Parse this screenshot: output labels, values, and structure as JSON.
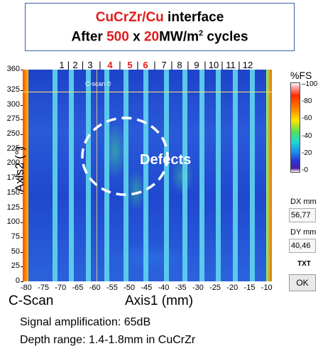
{
  "title": {
    "line1_red": "CuCrZr/Cu",
    "line1_rest": " interface",
    "line2_a": "After ",
    "line2_num1": "500",
    "line2_b": " x ",
    "line2_num2": "20",
    "line2_c": "MW/m",
    "line2_sup": "2",
    "line2_d": " cycles"
  },
  "channels": {
    "labels": [
      "1",
      "2",
      "3",
      "4",
      "5",
      "6",
      "7",
      "8",
      "9",
      "10",
      "11",
      "12"
    ],
    "highlighted": [
      "4",
      "5",
      "6"
    ],
    "separator": "|"
  },
  "cscan": {
    "inner_label": "C-scan 0",
    "annotation": "Defects",
    "x_ticks": [
      "-80",
      "-75",
      "-70",
      "-65",
      "-60",
      "-55",
      "-50",
      "-45",
      "-40",
      "-35",
      "-30",
      "-25",
      "-20",
      "-15",
      "-10"
    ],
    "y_ticks": [
      "360",
      "325",
      "300",
      "275",
      "250",
      "225",
      "200",
      "175",
      "150",
      "125",
      "100",
      "75",
      "50",
      "25",
      "0"
    ],
    "x_label": "Axis1 (mm)",
    "y_label": "Axis2 (°)",
    "view_label": "C-Scan"
  },
  "colorbar": {
    "unit": "%FS",
    "ticks": [
      "100",
      "80",
      "60",
      "40",
      "20",
      "0"
    ]
  },
  "side_panel": {
    "dx_label": "DX mm",
    "dx_value": "56,77",
    "dy_label": "DY mm",
    "dy_value": "40,46",
    "txt_label": "TXT",
    "ok_label": "OK"
  },
  "info": {
    "line1": "Signal amplification: 65dB",
    "line2": "Depth range: 1.4-1.8mm in CuCrZr"
  },
  "colors": {
    "highlight_red": "#e21b1b",
    "title_border": "#3a5fa8",
    "scan_background": "#1f48cf",
    "stripe_cyan": "#5fd2ee"
  }
}
